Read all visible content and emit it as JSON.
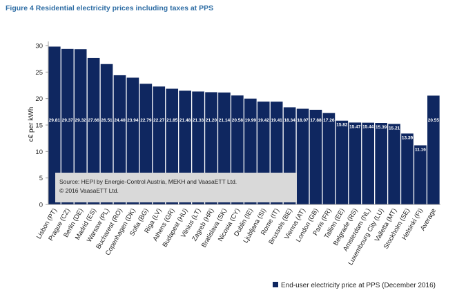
{
  "figure_title": "Figure 4 Residential electricity prices including taxes at PPS",
  "chart_data": {
    "type": "bar",
    "ylabel": "c€ per kWh",
    "xlabel": "",
    "ylim": [
      0,
      30
    ],
    "yticks": [
      0,
      5,
      10,
      15,
      20,
      25,
      30
    ],
    "grid": false,
    "legend": "bottom-right",
    "bar_color": "#0f2760",
    "categories": [
      "Lisbon (PT)",
      "Prague (CZ)",
      "Berlin (DE)",
      "Madrid (ES)",
      "Warsaw (PL)",
      "Bucharest (RO)",
      "Copenhagen (DK)",
      "Sofia (BG)",
      "Riga (LV)",
      "Athens (GR)",
      "Budapest (HU)",
      "Vilnius (LT)",
      "Zagreb (HR)",
      "Bratislava (SK)",
      "Nicosia (CY)",
      "Dublin (IE)",
      "Ljubljana (SI)",
      "Rome (IT)",
      "Brussels (BE)",
      "Vienna (AT)",
      "London (GB)",
      "Paris (FR)",
      "Tallinn (EE)",
      "Belgrade (RS)",
      "Amsterdam (NL)",
      "Luxembourg City (LU)",
      "Valletta (MT)",
      "Stockholm (SE)",
      "Helsinki (FI)",
      "Average"
    ],
    "series": [
      {
        "name": "End-user electricity price at PPS (December 2016)",
        "values": [
          29.81,
          29.37,
          29.32,
          27.66,
          26.51,
          24.4,
          23.94,
          22.79,
          22.27,
          21.85,
          21.48,
          21.33,
          21.2,
          21.14,
          20.58,
          19.99,
          19.42,
          19.41,
          18.34,
          18.07,
          17.88,
          17.26,
          15.82,
          15.47,
          15.44,
          15.39,
          15.21,
          13.39,
          11.16,
          20.55
        ]
      }
    ],
    "data_labels": [
      "29.81",
      "29.37",
      "29.32",
      "27.66",
      "26.51",
      "24.40",
      "23.94",
      "22.79",
      "22.27",
      "21.85",
      "21.48",
      "21.33",
      "21.20",
      "21.14",
      "20.58",
      "19.99",
      "19.42",
      "19.41",
      "18.34",
      "18.07",
      "17.88",
      "17.26",
      "15.82",
      "15.47",
      "15.44",
      "15.39",
      "15.21",
      "13.39",
      "11.16",
      "20.55"
    ],
    "annotation": [
      "Source: HEPI by Energie-Control Austria, MEKH and VaasaETT Ltd.",
      "© 2016 VaasaETT Ltd."
    ]
  }
}
